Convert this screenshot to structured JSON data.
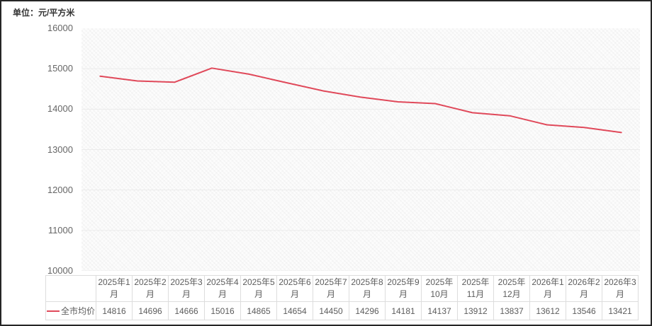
{
  "chart": {
    "unit_label": "单位：元/平方米"
  },
  "chart_data": {
    "type": "line",
    "title": "",
    "xlabel": "",
    "ylabel": "单位：元/平方米",
    "categories": [
      "2025年1月",
      "2025年2月",
      "2025年3月",
      "2025年4月",
      "2025年5月",
      "2025年6月",
      "2025年7月",
      "2025年8月",
      "2025年9月",
      "2025年10月",
      "2025年11月",
      "2025年12月",
      "2026年1月",
      "2026年2月",
      "2026年3月"
    ],
    "series": [
      {
        "name": "全市均价",
        "values": [
          14816,
          14696,
          14666,
          15016,
          14865,
          14654,
          14450,
          14296,
          14181,
          14137,
          13912,
          13837,
          13612,
          13546,
          13421
        ]
      }
    ],
    "ylim": [
      10000,
      16000
    ],
    "y_tick_step": 1000,
    "y_tick_labels": [
      "16000",
      "15000",
      "14000",
      "13000",
      "12000",
      "11000",
      "10000"
    ],
    "grid": true,
    "legend_position": "table-row-left"
  },
  "colors": {
    "line": "#e0495a",
    "grid": "#ebebeb",
    "axis_text": "#666666",
    "table_border": "#dddddd",
    "table_text": "#5c5c5c",
    "title_text": "#333333"
  }
}
